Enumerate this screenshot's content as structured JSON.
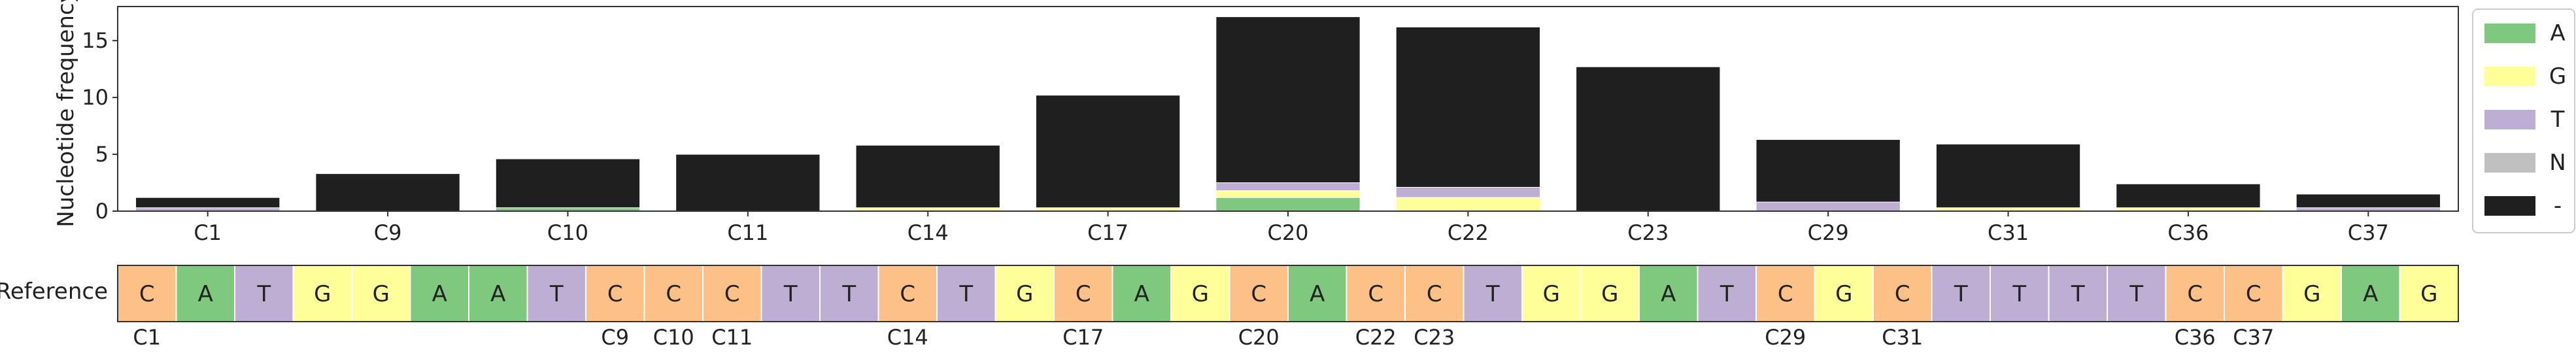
{
  "colors": {
    "A": "#7fc97f",
    "G": "#ffff99",
    "T": "#beaed4",
    "C": "#fdc086",
    "N": "#c0c0c0",
    "-": "#1f1f1f",
    "axis": "#333333"
  },
  "chart_data": [
    {
      "type": "bar",
      "stacked": true,
      "ylabel": "Nucleotide frequency",
      "ylim": [
        0,
        18
      ],
      "yticks": [
        0,
        5,
        10,
        15
      ],
      "grid": false,
      "legend_position": "right",
      "categories": [
        "C1",
        "C9",
        "C10",
        "C11",
        "C14",
        "C17",
        "C20",
        "C22",
        "C23",
        "C29",
        "C31",
        "C36",
        "C37"
      ],
      "series": [
        {
          "name": "A",
          "values": [
            0,
            0,
            0.3,
            0,
            0,
            0,
            1.2,
            0,
            0,
            0,
            0,
            0,
            0
          ]
        },
        {
          "name": "G",
          "values": [
            0,
            0,
            0,
            0,
            0.3,
            0.3,
            0.6,
            1.2,
            0,
            0,
            0.3,
            0.3,
            0
          ]
        },
        {
          "name": "T",
          "values": [
            0.3,
            0,
            0,
            0,
            0,
            0,
            0.7,
            0.9,
            0,
            0.8,
            0,
            0,
            0.3
          ]
        },
        {
          "name": "N",
          "values": [
            0,
            0,
            0,
            0,
            0,
            0,
            0,
            0,
            0,
            0,
            0,
            0,
            0
          ]
        },
        {
          "name": "-",
          "values": [
            0.9,
            3.3,
            4.3,
            5.0,
            5.5,
            9.9,
            14.6,
            14.1,
            12.7,
            5.5,
            5.6,
            2.1,
            1.2
          ]
        }
      ]
    },
    {
      "type": "table",
      "row_label": "Reference",
      "sequence": [
        "C",
        "A",
        "T",
        "G",
        "G",
        "A",
        "A",
        "T",
        "C",
        "C",
        "C",
        "T",
        "T",
        "C",
        "T",
        "G",
        "C",
        "A",
        "G",
        "C",
        "A",
        "C",
        "C",
        "T",
        "G",
        "G",
        "A",
        "T",
        "C",
        "G",
        "C",
        "T",
        "T",
        "T",
        "T",
        "C",
        "C",
        "G",
        "A",
        "G"
      ],
      "position_labels": [
        {
          "index": 0,
          "label": "C1"
        },
        {
          "index": 8,
          "label": "C9"
        },
        {
          "index": 9,
          "label": "C10"
        },
        {
          "index": 10,
          "label": "C11"
        },
        {
          "index": 13,
          "label": "C14"
        },
        {
          "index": 16,
          "label": "C17"
        },
        {
          "index": 19,
          "label": "C20"
        },
        {
          "index": 21,
          "label": "C22"
        },
        {
          "index": 22,
          "label": "C23"
        },
        {
          "index": 28,
          "label": "C29"
        },
        {
          "index": 30,
          "label": "C31"
        },
        {
          "index": 35,
          "label": "C36"
        },
        {
          "index": 36,
          "label": "C37"
        }
      ]
    }
  ]
}
